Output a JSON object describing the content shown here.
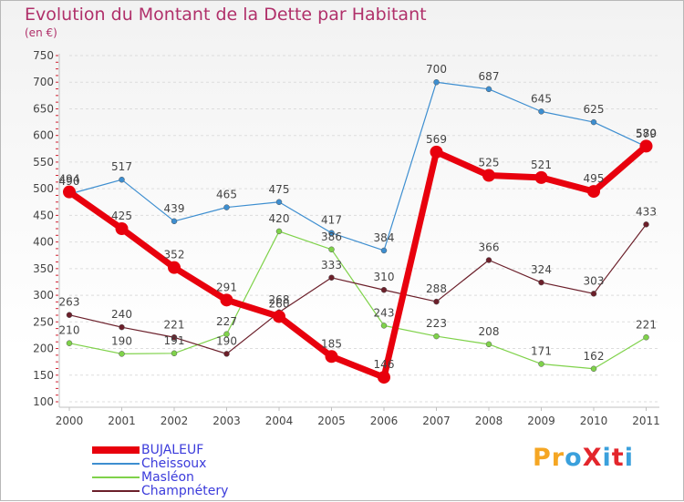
{
  "header": {
    "title": "Evolution du Montant de la Dette par Habitant",
    "unit": "(en €)"
  },
  "logo": {
    "text": "ProXiti",
    "colors": [
      "#f5a623",
      "#f5a623",
      "#3aa0dc",
      "#e3262c",
      "#3aa0dc",
      "#e3262c",
      "#3aa0dc"
    ]
  },
  "chart_data": {
    "type": "line",
    "x": [
      "2000",
      "2001",
      "2002",
      "2003",
      "2004",
      "2005",
      "2006",
      "2007",
      "2008",
      "2009",
      "2010",
      "2011"
    ],
    "ylim": [
      100,
      750
    ],
    "yticks": [
      100,
      150,
      200,
      250,
      300,
      350,
      400,
      450,
      500,
      550,
      600,
      650,
      700,
      750
    ],
    "grid": "horizontal",
    "legend": "bottom-left",
    "series": [
      {
        "name": "BUJALEUF",
        "color": "#e8000d",
        "values": [
          494,
          425,
          352,
          291,
          260,
          185,
          146,
          569,
          525,
          521,
          495,
          580
        ]
      },
      {
        "name": "Cheissoux",
        "color": "#3d8ed0",
        "values": [
          490,
          517,
          439,
          465,
          475,
          417,
          384,
          700,
          687,
          645,
          625,
          579
        ]
      },
      {
        "name": "Masléon",
        "color": "#7fd24a",
        "values": [
          210,
          190,
          191,
          227,
          420,
          386,
          243,
          223,
          208,
          171,
          162,
          221
        ]
      },
      {
        "name": "Champnétery",
        "color": "#6b1f2a",
        "values": [
          263,
          240,
          221,
          190,
          268,
          333,
          310,
          288,
          366,
          324,
          303,
          433
        ]
      }
    ]
  }
}
